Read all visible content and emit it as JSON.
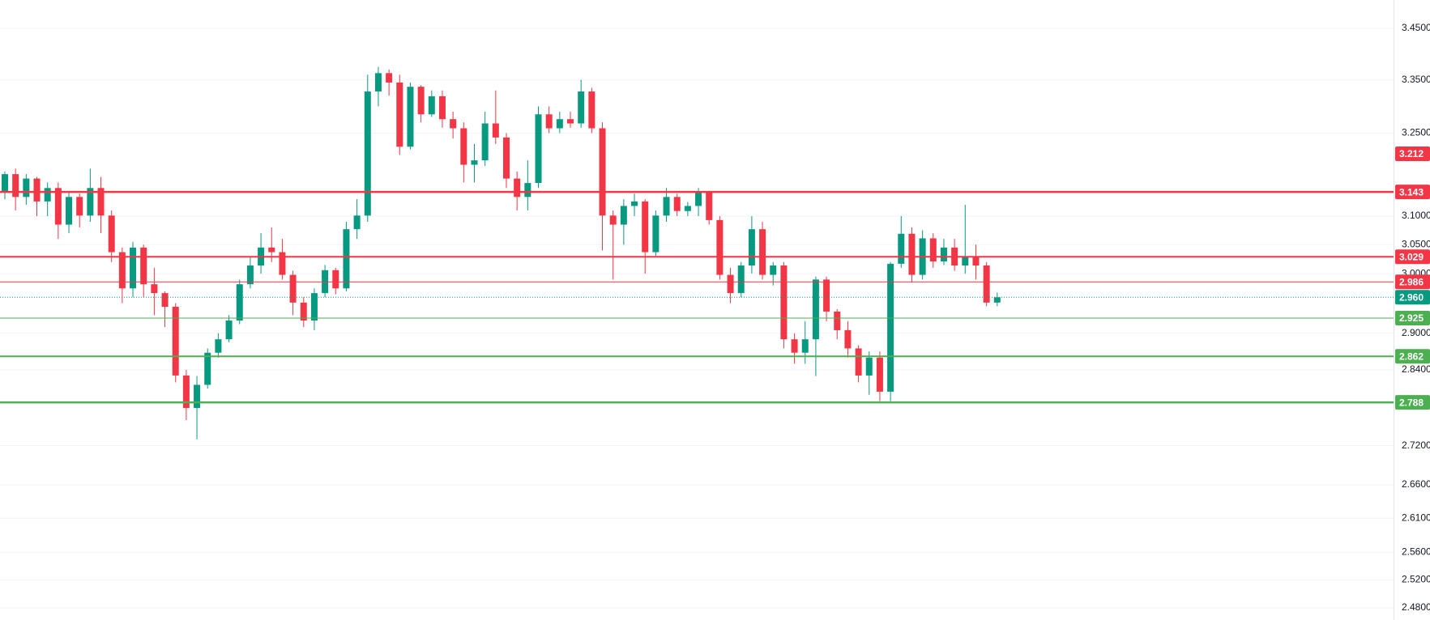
{
  "chart_data": {
    "type": "candlestick",
    "log_scale": true,
    "grid": true,
    "up_color": "#089981",
    "down_color": "#f23645",
    "ylim": [
      2.463,
      3.506
    ],
    "yticks": [
      {
        "value": 3.45,
        "label": "3.4500"
      },
      {
        "value": 3.35,
        "label": "3.3500"
      },
      {
        "value": 3.25,
        "label": "3.2500"
      },
      {
        "value": 3.1,
        "label": "3.1000"
      },
      {
        "value": 3.05,
        "label": "3.0500"
      },
      {
        "value": 3.0,
        "label": "3.0000"
      },
      {
        "value": 2.9,
        "label": "2.9000"
      },
      {
        "value": 2.84,
        "label": "2.8400"
      },
      {
        "value": 2.72,
        "label": "2.7200"
      },
      {
        "value": 2.66,
        "label": "2.6600"
      },
      {
        "value": 2.61,
        "label": "2.6100"
      },
      {
        "value": 2.56,
        "label": "2.5600"
      },
      {
        "value": 2.52,
        "label": "2.5200"
      },
      {
        "value": 2.48,
        "label": "2.4800"
      }
    ],
    "open": [
      3.142,
      3.175,
      3.134,
      3.167,
      3.126,
      3.15,
      3.085,
      3.134,
      3.101,
      3.15,
      3.101,
      3.037,
      2.975,
      3.045,
      2.982,
      2.967,
      2.944,
      2.831,
      2.779,
      2.816,
      2.868,
      2.89,
      2.921,
      2.982,
      3.014,
      3.045,
      3.037,
      2.998,
      2.951,
      2.921,
      2.967,
      3.006,
      2.975,
      3.077,
      3.101,
      3.328,
      3.363,
      3.345,
      3.225,
      3.337,
      3.285,
      3.319,
      3.276,
      3.259,
      3.192,
      3.2,
      3.268,
      3.242,
      3.167,
      3.134,
      3.159,
      3.285,
      3.259,
      3.276,
      3.268,
      3.328,
      3.259,
      3.101,
      3.085,
      3.118,
      3.126,
      3.037,
      3.101,
      3.134,
      3.109,
      3.118,
      3.142,
      3.093,
      2.998,
      2.967,
      3.014,
      3.077,
      2.998,
      3.014,
      2.89,
      2.868,
      2.89,
      2.99,
      2.936,
      2.905,
      2.875,
      2.831,
      2.86,
      2.805,
      3.017,
      3.069,
      2.998,
      3.061,
      3.021,
      3.045,
      3.014,
      3.029,
      3.014,
      2.951
    ],
    "high": [
      3.18,
      3.185,
      3.175,
      3.17,
      3.16,
      3.16,
      3.145,
      3.14,
      3.185,
      3.17,
      3.11,
      3.045,
      3.055,
      3.05,
      3.01,
      2.97,
      2.95,
      2.84,
      2.83,
      2.875,
      2.9,
      2.93,
      2.99,
      3.03,
      3.07,
      3.08,
      3.06,
      3.005,
      2.96,
      2.975,
      3.015,
      3.01,
      3.09,
      3.13,
      3.36,
      3.375,
      3.37,
      3.36,
      3.345,
      3.34,
      3.33,
      3.33,
      3.29,
      3.27,
      3.23,
      3.29,
      3.33,
      3.25,
      3.18,
      3.2,
      3.3,
      3.3,
      3.29,
      3.29,
      3.35,
      3.335,
      3.27,
      3.11,
      3.13,
      3.14,
      3.13,
      3.11,
      3.15,
      3.14,
      3.125,
      3.15,
      3.145,
      3.1,
      3.01,
      3.02,
      3.1,
      3.09,
      3.02,
      3.02,
      2.9,
      2.92,
      2.995,
      2.995,
      2.94,
      2.92,
      2.88,
      2.87,
      2.87,
      3.02,
      3.1,
      3.08,
      3.075,
      3.07,
      3.06,
      3.06,
      3.12,
      3.05,
      3.02,
      2.968
    ],
    "low": [
      3.13,
      3.11,
      3.12,
      3.1,
      3.1,
      3.06,
      3.07,
      3.08,
      3.09,
      3.07,
      3.02,
      2.95,
      2.96,
      2.96,
      2.93,
      2.91,
      2.82,
      2.76,
      2.73,
      2.81,
      2.86,
      2.885,
      2.915,
      2.975,
      3.0,
      3.02,
      2.99,
      2.93,
      2.91,
      2.905,
      2.96,
      2.965,
      2.97,
      3.06,
      3.09,
      3.3,
      3.32,
      3.21,
      3.22,
      3.27,
      3.28,
      3.26,
      3.24,
      3.16,
      3.16,
      3.19,
      3.23,
      3.15,
      3.11,
      3.11,
      3.15,
      3.25,
      3.25,
      3.26,
      3.26,
      3.25,
      3.04,
      2.99,
      3.05,
      3.1,
      3.0,
      3.03,
      3.09,
      3.1,
      3.1,
      3.1,
      3.085,
      2.99,
      2.95,
      2.96,
      3.0,
      2.99,
      2.98,
      2.875,
      2.85,
      2.85,
      2.83,
      2.92,
      2.89,
      2.86,
      2.82,
      2.8,
      2.79,
      2.79,
      3.01,
      2.985,
      2.99,
      3.01,
      3.015,
      3.005,
      3.0,
      2.99,
      2.945,
      2.945
    ],
    "close": [
      3.175,
      3.134,
      3.167,
      3.126,
      3.15,
      3.085,
      3.134,
      3.101,
      3.15,
      3.101,
      3.037,
      2.975,
      3.045,
      2.982,
      2.967,
      2.944,
      2.831,
      2.779,
      2.816,
      2.868,
      2.89,
      2.921,
      2.982,
      3.014,
      3.045,
      3.037,
      2.998,
      2.951,
      2.921,
      2.967,
      3.006,
      2.975,
      3.077,
      3.101,
      3.328,
      3.363,
      3.345,
      3.225,
      3.337,
      3.285,
      3.319,
      3.276,
      3.259,
      3.192,
      3.2,
      3.268,
      3.242,
      3.167,
      3.134,
      3.159,
      3.285,
      3.259,
      3.276,
      3.268,
      3.328,
      3.259,
      3.101,
      3.085,
      3.118,
      3.126,
      3.037,
      3.101,
      3.134,
      3.109,
      3.118,
      3.142,
      3.093,
      2.998,
      2.967,
      3.014,
      3.077,
      2.998,
      3.014,
      2.89,
      2.868,
      2.89,
      2.99,
      2.936,
      2.905,
      2.875,
      2.831,
      2.86,
      2.805,
      3.017,
      3.069,
      2.998,
      3.061,
      3.021,
      3.045,
      3.014,
      3.029,
      3.014,
      2.951,
      2.96
    ],
    "levels": [
      {
        "value": 3.212,
        "label": "3.212",
        "color": "#f23645",
        "style": "none"
      },
      {
        "value": 3.143,
        "label": "3.143",
        "color": "#f23645",
        "style": "thick"
      },
      {
        "value": 3.029,
        "label": "3.029",
        "color": "#f23645",
        "style": "medium"
      },
      {
        "value": 2.986,
        "label": "2.986",
        "color": "#f23645",
        "style": "thin"
      },
      {
        "value": 2.96,
        "label": "2.960",
        "color": "#089981",
        "style": "dotted"
      },
      {
        "value": 2.925,
        "label": "2.925",
        "color": "#4caf50",
        "style": "thin"
      },
      {
        "value": 2.862,
        "label": "2.862",
        "color": "#4caf50",
        "style": "medium"
      },
      {
        "value": 2.788,
        "label": "2.788",
        "color": "#4caf50",
        "style": "thick"
      }
    ]
  }
}
